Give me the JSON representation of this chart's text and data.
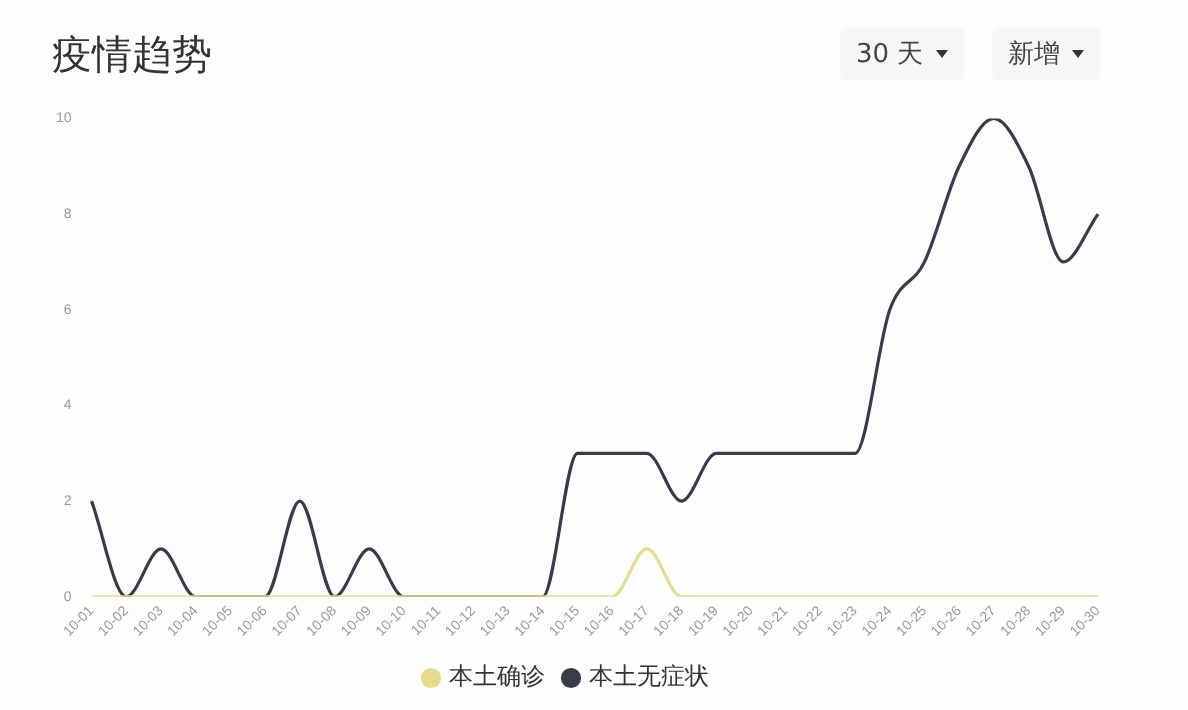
{
  "chart_data": {
    "type": "line",
    "title": "疫情趋势",
    "annotations": [
      "30 天",
      "新增"
    ],
    "categories": [
      "10-01",
      "10-02",
      "10-03",
      "10-04",
      "10-05",
      "10-06",
      "10-07",
      "10-08",
      "10-09",
      "10-10",
      "10-11",
      "10-12",
      "10-13",
      "10-14",
      "10-15",
      "10-16",
      "10-17",
      "10-18",
      "10-19",
      "10-20",
      "10-21",
      "10-22",
      "10-23",
      "10-24",
      "10-25",
      "10-26",
      "10-27",
      "10-28",
      "10-29",
      "10-30"
    ],
    "series": [
      {
        "name": "本土确诊",
        "color": "#e3dc8c",
        "values": [
          0,
          0,
          0,
          0,
          0,
          0,
          0,
          0,
          0,
          0,
          0,
          0,
          0,
          0,
          0,
          0,
          1,
          0,
          0,
          0,
          0,
          0,
          0,
          0,
          0,
          0,
          0,
          0,
          0,
          0
        ]
      },
      {
        "name": "本土无症状",
        "color": "#3a3b4a",
        "values": [
          2,
          0,
          1,
          0,
          0,
          0,
          2,
          0,
          1,
          0,
          0,
          0,
          0,
          0,
          3,
          3,
          3,
          2,
          3,
          3,
          3,
          3,
          3,
          6,
          7,
          9,
          10,
          9,
          7,
          8
        ]
      }
    ],
    "ylim": [
      0,
      10
    ],
    "yticks": [
      0,
      2,
      4,
      6,
      8,
      10
    ],
    "grid": false,
    "legend": "bottom",
    "marker": "none"
  }
}
